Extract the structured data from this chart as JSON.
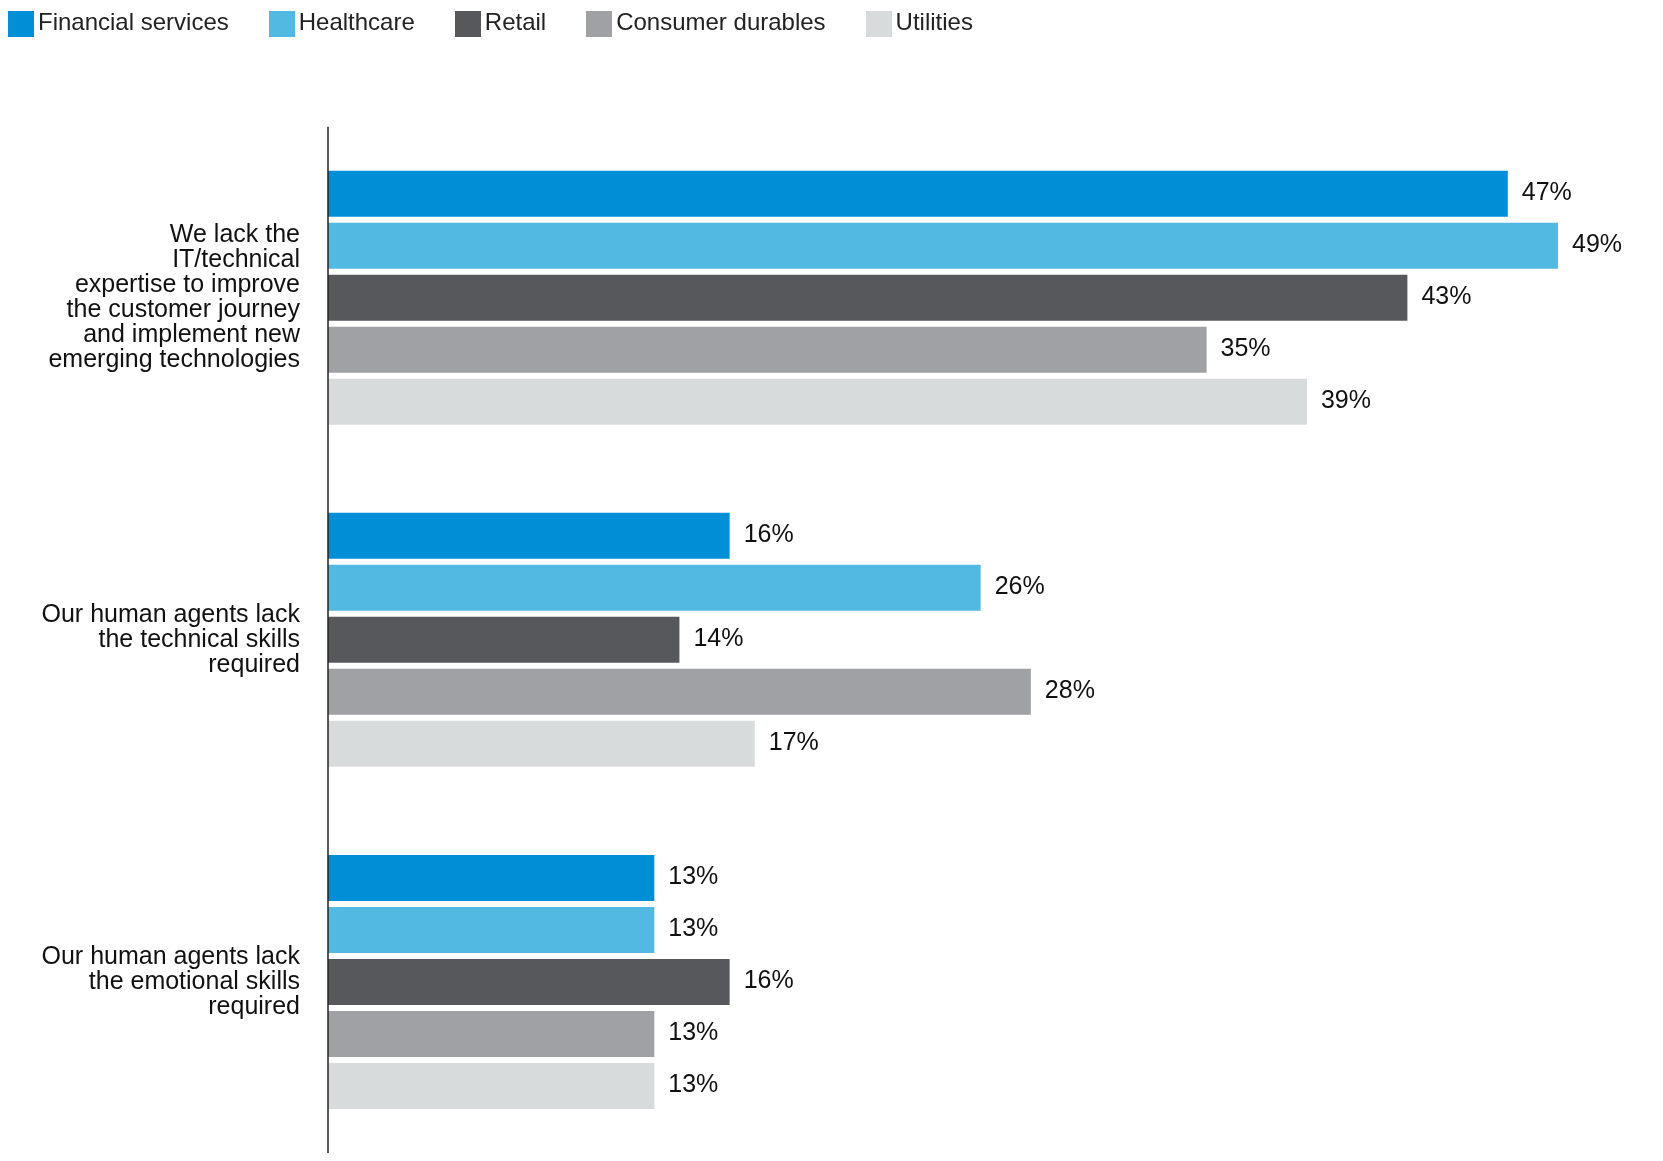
{
  "chart_data": {
    "type": "bar",
    "orientation": "horizontal",
    "legend": "top left",
    "grid": false,
    "categories": [
      "We lack the IT/technical expertise to improve the customer journey and implement new emerging technologies",
      "Our human agents lack the technical skills required",
      "Our human agents lack the emotional skills required"
    ],
    "series": [
      {
        "name": "Financial services",
        "color": "#008fd6",
        "values": [
          47,
          16,
          13
        ],
        "value_labels": [
          "47%",
          "16%",
          "13%"
        ]
      },
      {
        "name": "Healthcare",
        "color": "#52b9e3",
        "values": [
          49,
          26,
          13
        ],
        "value_labels": [
          "49%",
          "26%",
          "13%"
        ]
      },
      {
        "name": "Retail",
        "color": "#57585c",
        "values": [
          43,
          14,
          16
        ],
        "value_labels": [
          "43%",
          "14%",
          "16%"
        ]
      },
      {
        "name": "Consumer durables",
        "color": "#a0a1a4",
        "values": [
          35,
          28,
          13
        ],
        "value_labels": [
          "35%",
          "28%",
          "13%"
        ]
      },
      {
        "name": "Utilities",
        "color": "#d8dbdc",
        "values": [
          39,
          17,
          13
        ],
        "value_labels": [
          "39%",
          "17%",
          "13%"
        ]
      }
    ]
  }
}
